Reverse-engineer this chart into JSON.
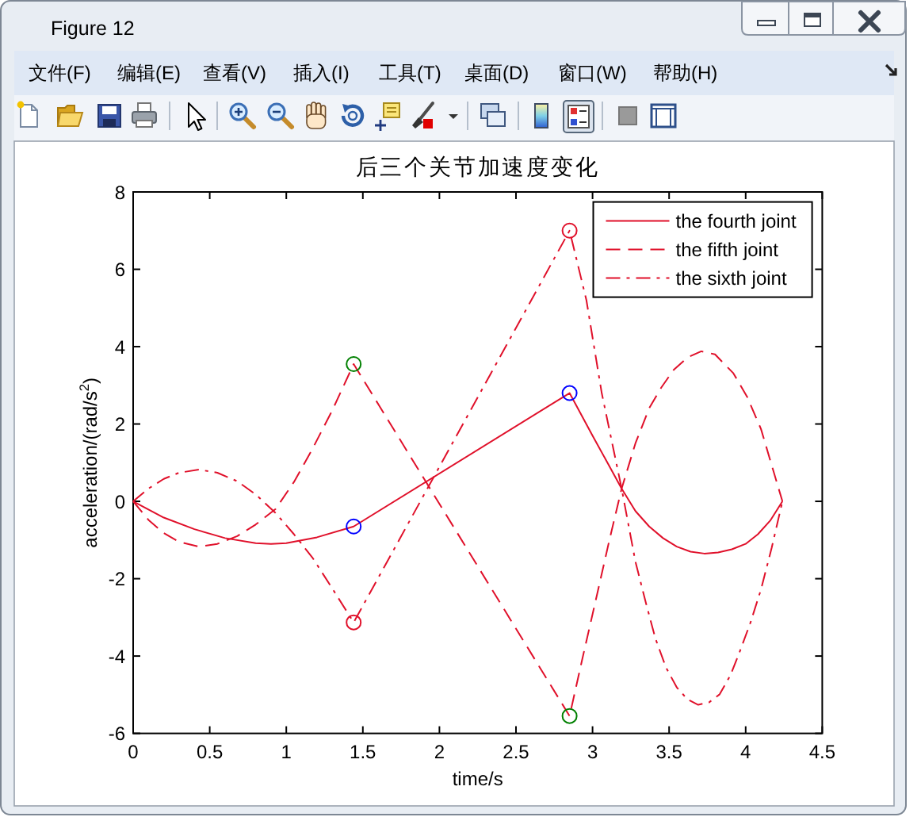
{
  "chart_data": {
    "type": "line",
    "title": "后三个关节加速度变化",
    "xlabel": "time/s",
    "ylabel": "acceleration/(rad/s$^{2}$)",
    "annotations": [
      "Figure 12",
      "文件(F)",
      "编辑(E)",
      "查看(V)",
      "插入(I)",
      "工具(T)",
      "桌面(D)",
      "窗口(W)",
      "帮助(H)"
    ],
    "xlim": [
      0,
      4.5
    ],
    "xticks": [
      0,
      0.5,
      1,
      1.5,
      2,
      2.5,
      3,
      3.5,
      4,
      4.5
    ],
    "ylim": [
      -6,
      8
    ],
    "yticks": [
      -6,
      -4,
      -2,
      0,
      2,
      4,
      6,
      8
    ],
    "legend": "top right",
    "series": [
      {
        "name": "the fourth joint",
        "color": "#e0102a",
        "line_style": "solid",
        "x": [
          0,
          0.2,
          0.4,
          0.6,
          0.8,
          0.9,
          1.0,
          1.2,
          1.44,
          2.85,
          3.0,
          3.1,
          3.19,
          3.28,
          3.37,
          3.46,
          3.55,
          3.64,
          3.73,
          3.82,
          3.91,
          4.0,
          4.08,
          4.16,
          4.24
        ],
        "values": [
          0,
          -0.42,
          -0.72,
          -0.95,
          -1.08,
          -1.1,
          -1.08,
          -0.93,
          -0.65,
          2.8,
          1.7,
          0.98,
          0.33,
          -0.25,
          -0.65,
          -0.95,
          -1.17,
          -1.3,
          -1.35,
          -1.32,
          -1.24,
          -1.1,
          -0.85,
          -0.5,
          0
        ]
      },
      {
        "name": "the fifth joint",
        "color": "#e0102a",
        "line_style": "dashed",
        "x": [
          0,
          0.1,
          0.2,
          0.3,
          0.43,
          0.55,
          0.68,
          0.8,
          0.93,
          1.05,
          1.17,
          1.3,
          1.44,
          2.85,
          2.93,
          3.03,
          3.11,
          3.19,
          3.28,
          3.37,
          3.45,
          3.53,
          3.62,
          3.71,
          3.8,
          3.92,
          4.01,
          4.1,
          4.18,
          4.24
        ],
        "values": [
          0,
          -0.48,
          -0.82,
          -1.05,
          -1.17,
          -1.1,
          -0.9,
          -0.6,
          -0.2,
          0.5,
          1.35,
          2.35,
          3.55,
          -5.55,
          -4.13,
          -2.4,
          -1.0,
          0.33,
          1.5,
          2.41,
          2.95,
          3.4,
          3.72,
          3.88,
          3.8,
          3.31,
          2.7,
          1.87,
          0.8,
          0
        ]
      },
      {
        "name": "the sixth joint",
        "color": "#e0102a",
        "line_style": "dashdot",
        "x": [
          0,
          0.1,
          0.2,
          0.3,
          0.43,
          0.55,
          0.68,
          0.8,
          0.93,
          1.05,
          1.17,
          1.3,
          1.44,
          2.85,
          2.96,
          3.06,
          3.19,
          3.28,
          3.35,
          3.41,
          3.48,
          3.55,
          3.62,
          3.69,
          3.76,
          3.83,
          3.9,
          3.96,
          4.03,
          4.1,
          4.17,
          4.24
        ],
        "values": [
          0,
          0.33,
          0.58,
          0.74,
          0.82,
          0.74,
          0.52,
          0.18,
          -0.3,
          -0.85,
          -1.45,
          -2.25,
          -3.13,
          7.0,
          5.2,
          2.8,
          0.33,
          -1.56,
          -2.65,
          -3.54,
          -4.3,
          -4.81,
          -5.12,
          -5.26,
          -5.2,
          -4.99,
          -4.5,
          -3.9,
          -3.15,
          -2.28,
          -1.2,
          0
        ]
      },
      {
        "type": "scatter",
        "marker": "circle",
        "color": "#0000ff",
        "x": [
          1.44,
          2.85
        ],
        "values": [
          -0.65,
          2.8
        ]
      },
      {
        "type": "scatter",
        "marker": "circle",
        "color": "#008000",
        "x": [
          1.44,
          2.85
        ],
        "values": [
          3.55,
          -5.55
        ]
      },
      {
        "type": "scatter",
        "marker": "circle",
        "color": "#e0102a",
        "x": [
          1.44,
          2.85
        ],
        "values": [
          -3.13,
          7.0
        ]
      }
    ]
  }
}
